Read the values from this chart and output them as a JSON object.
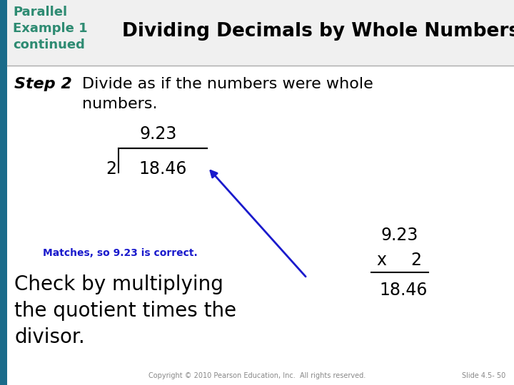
{
  "bg_color": "#ffffff",
  "left_bar_color": "#1a6b8a",
  "left_bar_text_color": "#2a8a7a",
  "title_text": "Dividing Decimals by Whole Numbers",
  "title_color": "#000000",
  "title_fontsize": 19,
  "header_left_text": "Parallel\nExample 1\ncontinued",
  "header_left_color": "#2e8b72",
  "step_label": "Step 2",
  "step_color": "#000000",
  "step_text": "Divide as if the numbers were whole\nnumbers.",
  "division_quotient": "9.23",
  "division_divisor": "2",
  "division_dividend": "18.46",
  "matches_text": "Matches, so 9.23 is correct.",
  "matches_color": "#1a1acc",
  "check_text": "Check by multiplying\nthe quotient times the\ndivisor.",
  "mult_top": "9.23",
  "mult_x": "x",
  "mult_x_val": "2",
  "mult_result": "18.46",
  "copyright_text": "Copyright © 2010 Pearson Education, Inc.  All rights reserved.",
  "slide_text": "Slide 4.5- 50",
  "arrow_color": "#1a1acc",
  "figw": 7.2,
  "figh": 5.4,
  "dpi": 100
}
